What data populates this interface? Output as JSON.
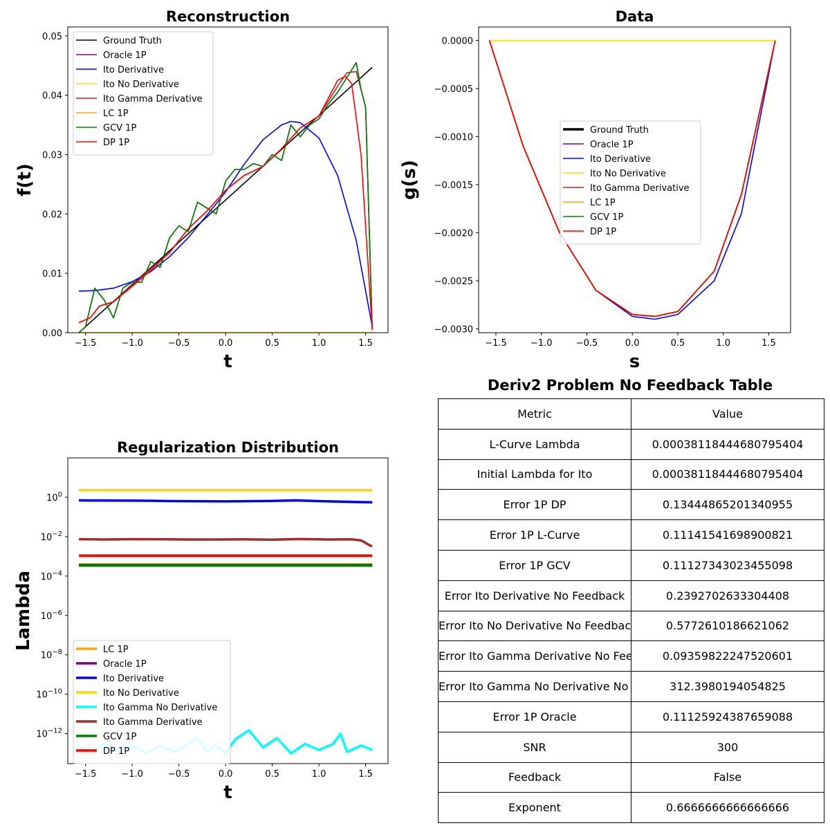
{
  "chart_data": [
    {
      "type": "line",
      "title": "Reconstruction",
      "xlabel": "t",
      "ylabel": "f(t)",
      "xlim": [
        -1.69,
        1.74
      ],
      "ylim": [
        0.0,
        0.0515
      ],
      "xticks": [
        -1.5,
        -1.0,
        -0.5,
        0.0,
        0.5,
        1.0,
        1.5
      ],
      "xtick_labels": [
        "−1.5",
        "−1.0",
        "−0.5",
        "0.0",
        "0.5",
        "1.0",
        "1.5"
      ],
      "yticks": [
        0.0,
        0.01,
        0.02,
        0.03,
        0.04,
        0.05
      ],
      "ytick_labels": [
        "0.00",
        "0.01",
        "0.02",
        "0.03",
        "0.04",
        "0.05"
      ],
      "grid": false,
      "legend_position": "upper-left",
      "series": [
        {
          "name": "Ground Truth",
          "color": "#000000",
          "x": [
            -1.571,
            1.571
          ],
          "y": [
            0.0,
            0.0447
          ]
        },
        {
          "name": "Oracle 1P",
          "color": "#800080",
          "x": [
            -1.571,
            -1.5,
            -1.4,
            -1.3,
            -1.2,
            -1.1,
            -1.0,
            -0.9,
            -0.8,
            -0.7,
            -0.6,
            -0.5,
            -0.4,
            -0.3,
            -0.2,
            -0.1,
            0.0,
            0.1,
            0.2,
            0.3,
            0.4,
            0.5,
            0.6,
            0.7,
            0.8,
            0.9,
            1.0,
            1.1,
            1.2,
            1.3,
            1.4,
            1.45,
            1.5,
            1.571
          ],
          "y": [
            0.0,
            0.001,
            0.0075,
            0.0055,
            0.0025,
            0.0075,
            0.0085,
            0.0085,
            0.012,
            0.011,
            0.016,
            0.018,
            0.017,
            0.022,
            0.021,
            0.02,
            0.0255,
            0.0275,
            0.0275,
            0.0285,
            0.028,
            0.03,
            0.029,
            0.035,
            0.033,
            0.035,
            0.036,
            0.0385,
            0.0405,
            0.043,
            0.0455,
            0.041,
            0.038,
            0.0005
          ]
        },
        {
          "name": "Ito Derivative",
          "color": "#0000ff",
          "x": [
            -1.571,
            -1.4,
            -1.2,
            -1.0,
            -0.8,
            -0.6,
            -0.4,
            -0.2,
            0.0,
            0.2,
            0.4,
            0.6,
            0.7,
            0.8,
            1.0,
            1.2,
            1.4,
            1.571
          ],
          "y": [
            0.007,
            0.0071,
            0.0075,
            0.0086,
            0.0103,
            0.0128,
            0.016,
            0.0198,
            0.0237,
            0.0284,
            0.0325,
            0.035,
            0.0356,
            0.0354,
            0.0328,
            0.0265,
            0.0155,
            0.001
          ]
        },
        {
          "name": "Ito No Derivative",
          "color": "#ffd700",
          "x": [
            -1.571,
            1.571
          ],
          "y": [
            0.0,
            0.0
          ]
        },
        {
          "name": "Ito Gamma Derivative",
          "color": "#a52a2a",
          "x": [
            -1.571,
            -1.45,
            -1.35,
            -1.2,
            -1.0,
            -0.8,
            -0.6,
            -0.4,
            -0.2,
            0.0,
            0.2,
            0.4,
            0.6,
            0.8,
            1.0,
            1.2,
            1.3,
            1.4,
            1.5,
            1.571
          ],
          "y": [
            0.0017,
            0.0025,
            0.0045,
            0.0052,
            0.0078,
            0.0105,
            0.0135,
            0.0175,
            0.0205,
            0.024,
            0.0265,
            0.028,
            0.031,
            0.0345,
            0.0365,
            0.0415,
            0.0438,
            0.044,
            0.038,
            0.0005
          ]
        },
        {
          "name": "LC 1P",
          "color": "#ffa500",
          "x": [
            -1.571,
            1.571
          ],
          "y": [
            0.0,
            0.0
          ]
        },
        {
          "name": "GCV 1P",
          "color": "#008000",
          "x": [
            -1.571,
            -1.5,
            -1.4,
            -1.3,
            -1.2,
            -1.1,
            -1.0,
            -0.9,
            -0.8,
            -0.7,
            -0.6,
            -0.5,
            -0.4,
            -0.3,
            -0.2,
            -0.1,
            0.0,
            0.1,
            0.2,
            0.3,
            0.4,
            0.5,
            0.6,
            0.7,
            0.8,
            0.9,
            1.0,
            1.1,
            1.2,
            1.3,
            1.4,
            1.45,
            1.5,
            1.571
          ],
          "y": [
            0.0,
            0.001,
            0.0075,
            0.0055,
            0.0025,
            0.0075,
            0.0085,
            0.0085,
            0.012,
            0.011,
            0.016,
            0.018,
            0.017,
            0.022,
            0.021,
            0.02,
            0.0255,
            0.0275,
            0.0275,
            0.0285,
            0.028,
            0.03,
            0.029,
            0.035,
            0.033,
            0.035,
            0.036,
            0.0385,
            0.0405,
            0.043,
            0.0455,
            0.041,
            0.038,
            0.0005
          ]
        },
        {
          "name": "DP 1P",
          "color": "#ff0000",
          "x": [
            -1.571,
            -1.45,
            -1.35,
            -1.2,
            -1.0,
            -0.8,
            -0.6,
            -0.4,
            -0.2,
            0.0,
            0.2,
            0.4,
            0.6,
            0.8,
            1.0,
            1.2,
            1.28,
            1.35,
            1.45,
            1.571
          ],
          "y": [
            0.0017,
            0.0025,
            0.0045,
            0.0052,
            0.008,
            0.0108,
            0.0135,
            0.0175,
            0.0205,
            0.024,
            0.0265,
            0.028,
            0.031,
            0.0345,
            0.0365,
            0.0425,
            0.0432,
            0.042,
            0.03,
            0.0005
          ]
        }
      ]
    },
    {
      "type": "line",
      "title": "Data",
      "xlabel": "s",
      "ylabel": "g(s)",
      "xlim": [
        -1.69,
        1.74
      ],
      "ylim": [
        -0.00304,
        0.00014
      ],
      "xticks": [
        -1.5,
        -1.0,
        -0.5,
        0.0,
        0.5,
        1.0,
        1.5
      ],
      "xtick_labels": [
        "−1.5",
        "−1.0",
        "−0.5",
        "0.0",
        "0.5",
        "1.0",
        "1.5"
      ],
      "yticks": [
        0.0,
        -0.0005,
        -0.001,
        -0.0015,
        -0.002,
        -0.0025,
        -0.003
      ],
      "ytick_labels": [
        "0.0000",
        "−0.0005",
        "−0.0010",
        "−0.0015",
        "−0.0020",
        "−0.0025",
        "−0.0030"
      ],
      "grid": false,
      "legend_position": "center",
      "series": [
        {
          "name": "Ground Truth",
          "color": "#000000",
          "x": [
            -1.571,
            -1.2,
            -0.8,
            -0.4,
            0.0,
            0.25,
            0.5,
            0.9,
            1.2,
            1.571
          ],
          "y": [
            0.0,
            -0.0011,
            -0.002,
            -0.0026,
            -0.00285,
            -0.00287,
            -0.00282,
            -0.0024,
            -0.0016,
            0.0
          ]
        },
        {
          "name": "Oracle 1P",
          "color": "#800080",
          "x": [
            -1.571,
            -1.2,
            -0.8,
            -0.4,
            0.0,
            0.25,
            0.5,
            0.9,
            1.2,
            1.571
          ],
          "y": [
            0.0,
            -0.0011,
            -0.002,
            -0.0026,
            -0.00285,
            -0.00287,
            -0.00282,
            -0.0024,
            -0.0016,
            0.0
          ]
        },
        {
          "name": "Ito Derivative",
          "color": "#0000ff",
          "x": [
            -1.571,
            -1.2,
            -0.8,
            -0.4,
            0.0,
            0.25,
            0.5,
            0.9,
            1.2,
            1.571
          ],
          "y": [
            0.0,
            -0.0011,
            -0.002,
            -0.0026,
            -0.00287,
            -0.0029,
            -0.00285,
            -0.0025,
            -0.0018,
            0.0
          ]
        },
        {
          "name": "Ito No Derivative",
          "color": "#ffd700",
          "x": [
            -1.571,
            1.571
          ],
          "y": [
            0.0,
            0.0
          ]
        },
        {
          "name": "Ito Gamma Derivative",
          "color": "#a52a2a",
          "x": [
            -1.571,
            -1.2,
            -0.8,
            -0.4,
            0.0,
            0.25,
            0.5,
            0.9,
            1.2,
            1.571
          ],
          "y": [
            0.0,
            -0.0011,
            -0.002,
            -0.0026,
            -0.00285,
            -0.00287,
            -0.00282,
            -0.0024,
            -0.0016,
            0.0
          ]
        },
        {
          "name": "LC 1P",
          "color": "#ffa500",
          "x": [
            -1.571,
            -1.2,
            -0.8,
            -0.4,
            0.0,
            0.25,
            0.5,
            0.9,
            1.2,
            1.571
          ],
          "y": [
            0.0,
            -0.0011,
            -0.002,
            -0.0026,
            -0.00285,
            -0.00287,
            -0.00282,
            -0.0024,
            -0.0016,
            0.0
          ]
        },
        {
          "name": "GCV 1P",
          "color": "#008000",
          "x": [
            -1.571,
            -1.2,
            -0.8,
            -0.4,
            0.0,
            0.25,
            0.5,
            0.9,
            1.2,
            1.571
          ],
          "y": [
            0.0,
            -0.0011,
            -0.002,
            -0.0026,
            -0.00285,
            -0.00287,
            -0.00282,
            -0.0024,
            -0.0016,
            0.0
          ]
        },
        {
          "name": "DP 1P",
          "color": "#ff0000",
          "x": [
            -1.571,
            -1.2,
            -0.8,
            -0.4,
            0.0,
            0.25,
            0.5,
            0.9,
            1.2,
            1.571
          ],
          "y": [
            0.0,
            -0.0011,
            -0.002,
            -0.0026,
            -0.00285,
            -0.00287,
            -0.00282,
            -0.0024,
            -0.0016,
            0.0
          ]
        }
      ]
    },
    {
      "type": "line",
      "title": "Regularization Distribution",
      "xlabel": "t",
      "ylabel": "Lambda",
      "xlim": [
        -1.69,
        1.74
      ],
      "ylim": [
        3e-14,
        100
      ],
      "y_scale": "log",
      "xticks": [
        -1.5,
        -1.0,
        -0.5,
        0.0,
        0.5,
        1.0,
        1.5
      ],
      "xtick_labels": [
        "−1.5",
        "−1.0",
        "−0.5",
        "0.0",
        "0.5",
        "1.0",
        "1.5"
      ],
      "yticks": [
        1,
        0.01,
        0.0001,
        1e-06,
        1e-08,
        1e-10,
        1e-12
      ],
      "ytick_labels": [
        "10^0",
        "10^-2",
        "10^-4",
        "10^-6",
        "10^-8",
        "10^-10",
        "10^-12"
      ],
      "grid": false,
      "legend_position": "lower-left",
      "series": [
        {
          "name": "LC 1P",
          "color": "#ffa500",
          "x": [
            -1.571,
            1.571
          ],
          "y": [
            0.00038,
            0.00038
          ]
        },
        {
          "name": "Oracle 1P",
          "color": "#800080",
          "x": [
            -1.571,
            1.571
          ],
          "y": [
            0.00037,
            0.00037
          ]
        },
        {
          "name": "Ito Derivative",
          "color": "#0000ff",
          "x": [
            -1.571,
            -1.0,
            -0.5,
            0.0,
            0.5,
            0.75,
            1.0,
            1.571
          ],
          "y": [
            0.7,
            0.68,
            0.64,
            0.62,
            0.65,
            0.7,
            0.64,
            0.55
          ]
        },
        {
          "name": "Ito No Derivative",
          "color": "#ffd700",
          "x": [
            -1.571,
            1.571
          ],
          "y": [
            2.3,
            2.3
          ]
        },
        {
          "name": "Ito Gamma No Derivative",
          "color": "#00ffff",
          "x": [
            -1.571,
            -1.45,
            -1.3,
            -1.15,
            -1.0,
            -0.85,
            -0.7,
            -0.55,
            -0.4,
            -0.3,
            -0.2,
            -0.1,
            0.0,
            0.1,
            0.25,
            0.4,
            0.55,
            0.7,
            0.85,
            1.0,
            1.15,
            1.23,
            1.3,
            1.45,
            1.571
          ],
          "y": [
            2e-13,
            1e-13,
            3e-13,
            1.2e-13,
            2.5e-13,
            1e-13,
            2.5e-13,
            1.2e-13,
            3e-13,
            6e-13,
            1.2e-13,
            2.5e-13,
            1e-13,
            5e-13,
            1.5e-12,
            2e-13,
            6e-13,
            1e-13,
            3e-13,
            1.5e-13,
            3e-13,
            1e-12,
            1.2e-13,
            2.5e-13,
            1.5e-13
          ]
        },
        {
          "name": "Ito Gamma Derivative",
          "color": "#a52a2a",
          "x": [
            -1.571,
            -1.3,
            -1.0,
            -0.7,
            -0.4,
            -0.1,
            0.2,
            0.5,
            0.8,
            1.1,
            1.35,
            1.45,
            1.55,
            1.571
          ],
          "y": [
            0.0075,
            0.0072,
            0.0075,
            0.0074,
            0.0072,
            0.0072,
            0.0073,
            0.007,
            0.0076,
            0.0072,
            0.0073,
            0.0065,
            0.0035,
            0.0033
          ]
        },
        {
          "name": "GCV 1P",
          "color": "#008000",
          "x": [
            -1.571,
            1.571
          ],
          "y": [
            0.00034,
            0.00034
          ]
        },
        {
          "name": "DP 1P",
          "color": "#ff0000",
          "x": [
            -1.571,
            1.571
          ],
          "y": [
            0.0011,
            0.0011
          ]
        }
      ]
    },
    {
      "type": "table",
      "title": "Deriv2 Problem No Feedback Table",
      "columns": [
        "Metric",
        "Value"
      ],
      "rows": [
        [
          "L-Curve Lambda",
          "0.00038118444680795404"
        ],
        [
          "Initial Lambda for Ito",
          "0.00038118444680795404"
        ],
        [
          "Error 1P DP",
          "0.13444865201340955"
        ],
        [
          "Error 1P L-Curve",
          "0.11141541698900821"
        ],
        [
          "Error 1P GCV",
          "0.11127343023455098"
        ],
        [
          "Error Ito Derivative No Feedback",
          "0.2392702633304408"
        ],
        [
          "Error Ito No Derivative No Feedback",
          "0.5772610186621062"
        ],
        [
          "Error Ito Gamma Derivative No Feedback",
          "0.09359822247520601"
        ],
        [
          "Error Ito Gamma No Derivative No Feedback",
          "312.3980194054825"
        ],
        [
          "Error 1P Oracle",
          "0.11125924387659088"
        ],
        [
          "SNR",
          "300"
        ],
        [
          "Feedback",
          "False"
        ],
        [
          "Exponent",
          "0.6666666666666666"
        ]
      ]
    }
  ]
}
